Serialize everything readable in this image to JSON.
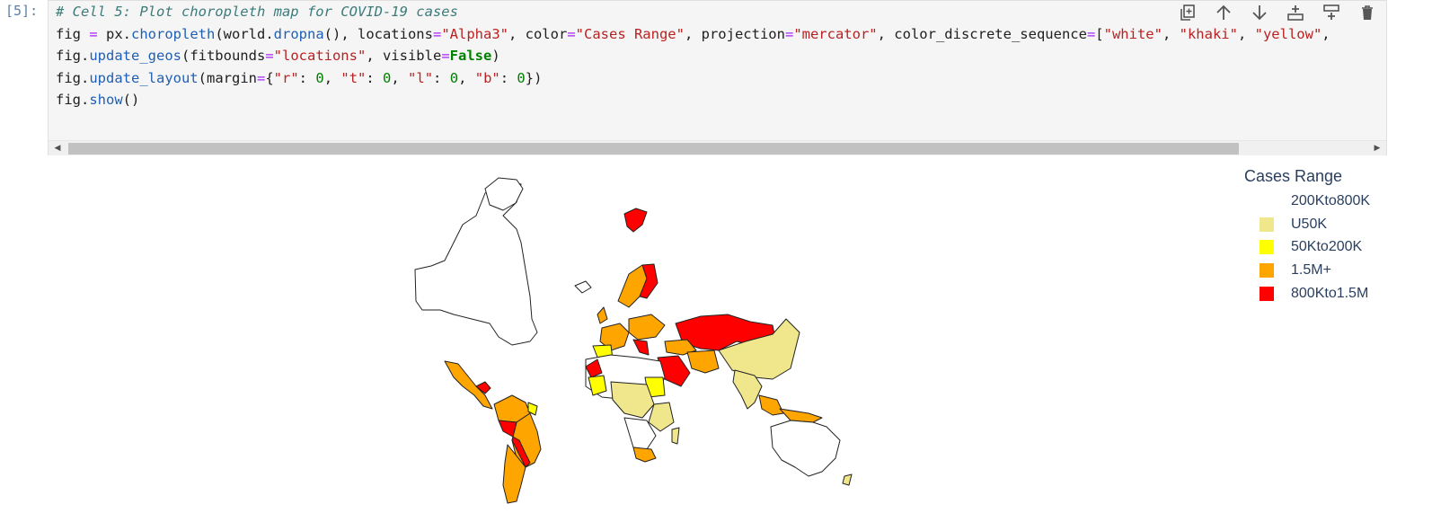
{
  "cell": {
    "prompt": "[5]:",
    "lines": [
      "# Cell 5: Plot choropleth map for COVID-19 cases",
      "fig = px.choropleth(world.dropna(), locations=\"Alpha3\", color=\"Cases Range\", projection=\"mercator\", color_discrete_sequence=[\"white\", \"khaki\", \"yellow\", ",
      "fig.update_geos(fitbounds=\"locations\", visible=False)",
      "fig.update_layout(margin={\"r\": 0, \"t\": 0, \"l\": 0, \"b\": 0})",
      "fig.show()"
    ]
  },
  "toolbar": {
    "icons": [
      "duplicate-icon",
      "move-up-icon",
      "move-down-icon",
      "insert-below-icon",
      "insert-above-icon",
      "delete-icon"
    ]
  },
  "legend": {
    "title": "Cases Range",
    "items": [
      {
        "label": "200Kto800K",
        "color": "#ffffff"
      },
      {
        "label": "U50K",
        "color": "#f0e68c"
      },
      {
        "label": "50Kto200K",
        "color": "#ffff00"
      },
      {
        "label": "1.5M+",
        "color": "#ffa500"
      },
      {
        "label": "800Kto1.5M",
        "color": "#ff0000"
      }
    ]
  }
}
